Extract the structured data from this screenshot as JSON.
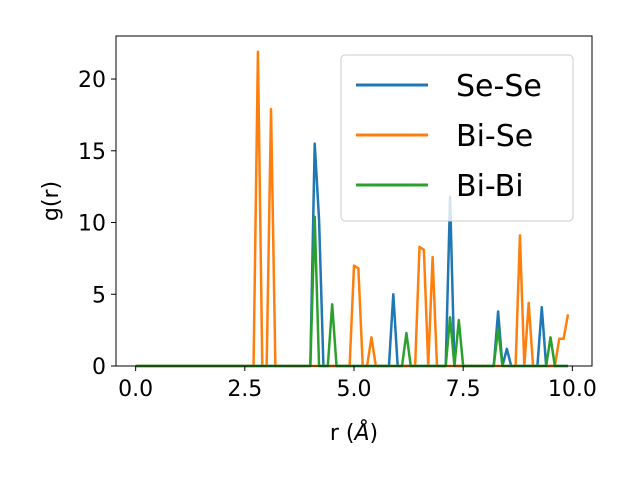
{
  "chart_data": {
    "type": "line",
    "xlabel_main": "r (",
    "xlabel_unit": "Å",
    "xlabel_close": ")",
    "ylabel": "g(r)",
    "xlim": [
      -0.45,
      10.45
    ],
    "ylim": [
      0,
      23
    ],
    "xticks": [
      0.0,
      2.5,
      5.0,
      7.5,
      10.0
    ],
    "xtick_labels": [
      "0.0",
      "2.5",
      "5.0",
      "7.5",
      "10.0"
    ],
    "yticks": [
      0,
      5,
      10,
      15,
      20
    ],
    "ytick_labels": [
      "0",
      "5",
      "10",
      "15",
      "20"
    ],
    "grid": false,
    "legend_placement": "top-right",
    "series": [
      {
        "name": "Se-Se",
        "color": "#1f77b4",
        "x": [
          0,
          4.0,
          4.1,
          4.2,
          4.3,
          5.8,
          5.9,
          6.0,
          7.1,
          7.2,
          7.3,
          8.2,
          8.3,
          8.4,
          8.5,
          8.6,
          9.2,
          9.3,
          9.4,
          9.9
        ],
        "y": [
          0,
          0,
          15.5,
          10.2,
          0,
          0,
          5.0,
          0,
          0,
          11.8,
          0,
          0,
          3.8,
          0,
          1.2,
          0,
          0,
          4.1,
          0,
          0
        ]
      },
      {
        "name": "Bi-Se",
        "color": "#ff7f0e",
        "x": [
          0,
          2.7,
          2.8,
          2.9,
          3.0,
          3.1,
          3.2,
          4.9,
          5.0,
          5.1,
          5.2,
          5.3,
          5.4,
          5.5,
          6.4,
          6.5,
          6.6,
          6.7,
          6.8,
          6.9,
          8.7,
          8.8,
          8.9,
          9.0,
          9.1,
          9.6,
          9.7,
          9.8,
          9.9
        ],
        "y": [
          0,
          0,
          21.9,
          0,
          0,
          17.9,
          0,
          0,
          7.0,
          6.8,
          0,
          0,
          2.0,
          0,
          0,
          8.3,
          8.1,
          0,
          7.6,
          0,
          0,
          9.1,
          0,
          4.4,
          0,
          0,
          1.9,
          1.9,
          3.6
        ]
      },
      {
        "name": "Bi-Bi",
        "color": "#2ca02c",
        "x": [
          0,
          4.0,
          4.1,
          4.2,
          4.4,
          4.5,
          4.6,
          6.1,
          6.2,
          6.3,
          7.1,
          7.2,
          7.3,
          7.4,
          7.5,
          8.2,
          8.3,
          8.4,
          9.4,
          9.5,
          9.6,
          9.9
        ],
        "y": [
          0,
          0,
          10.4,
          0,
          0,
          4.3,
          0,
          0,
          2.3,
          0,
          0,
          3.4,
          0,
          3.2,
          0,
          0,
          2.6,
          0,
          0,
          2.0,
          0,
          0
        ]
      }
    ]
  }
}
